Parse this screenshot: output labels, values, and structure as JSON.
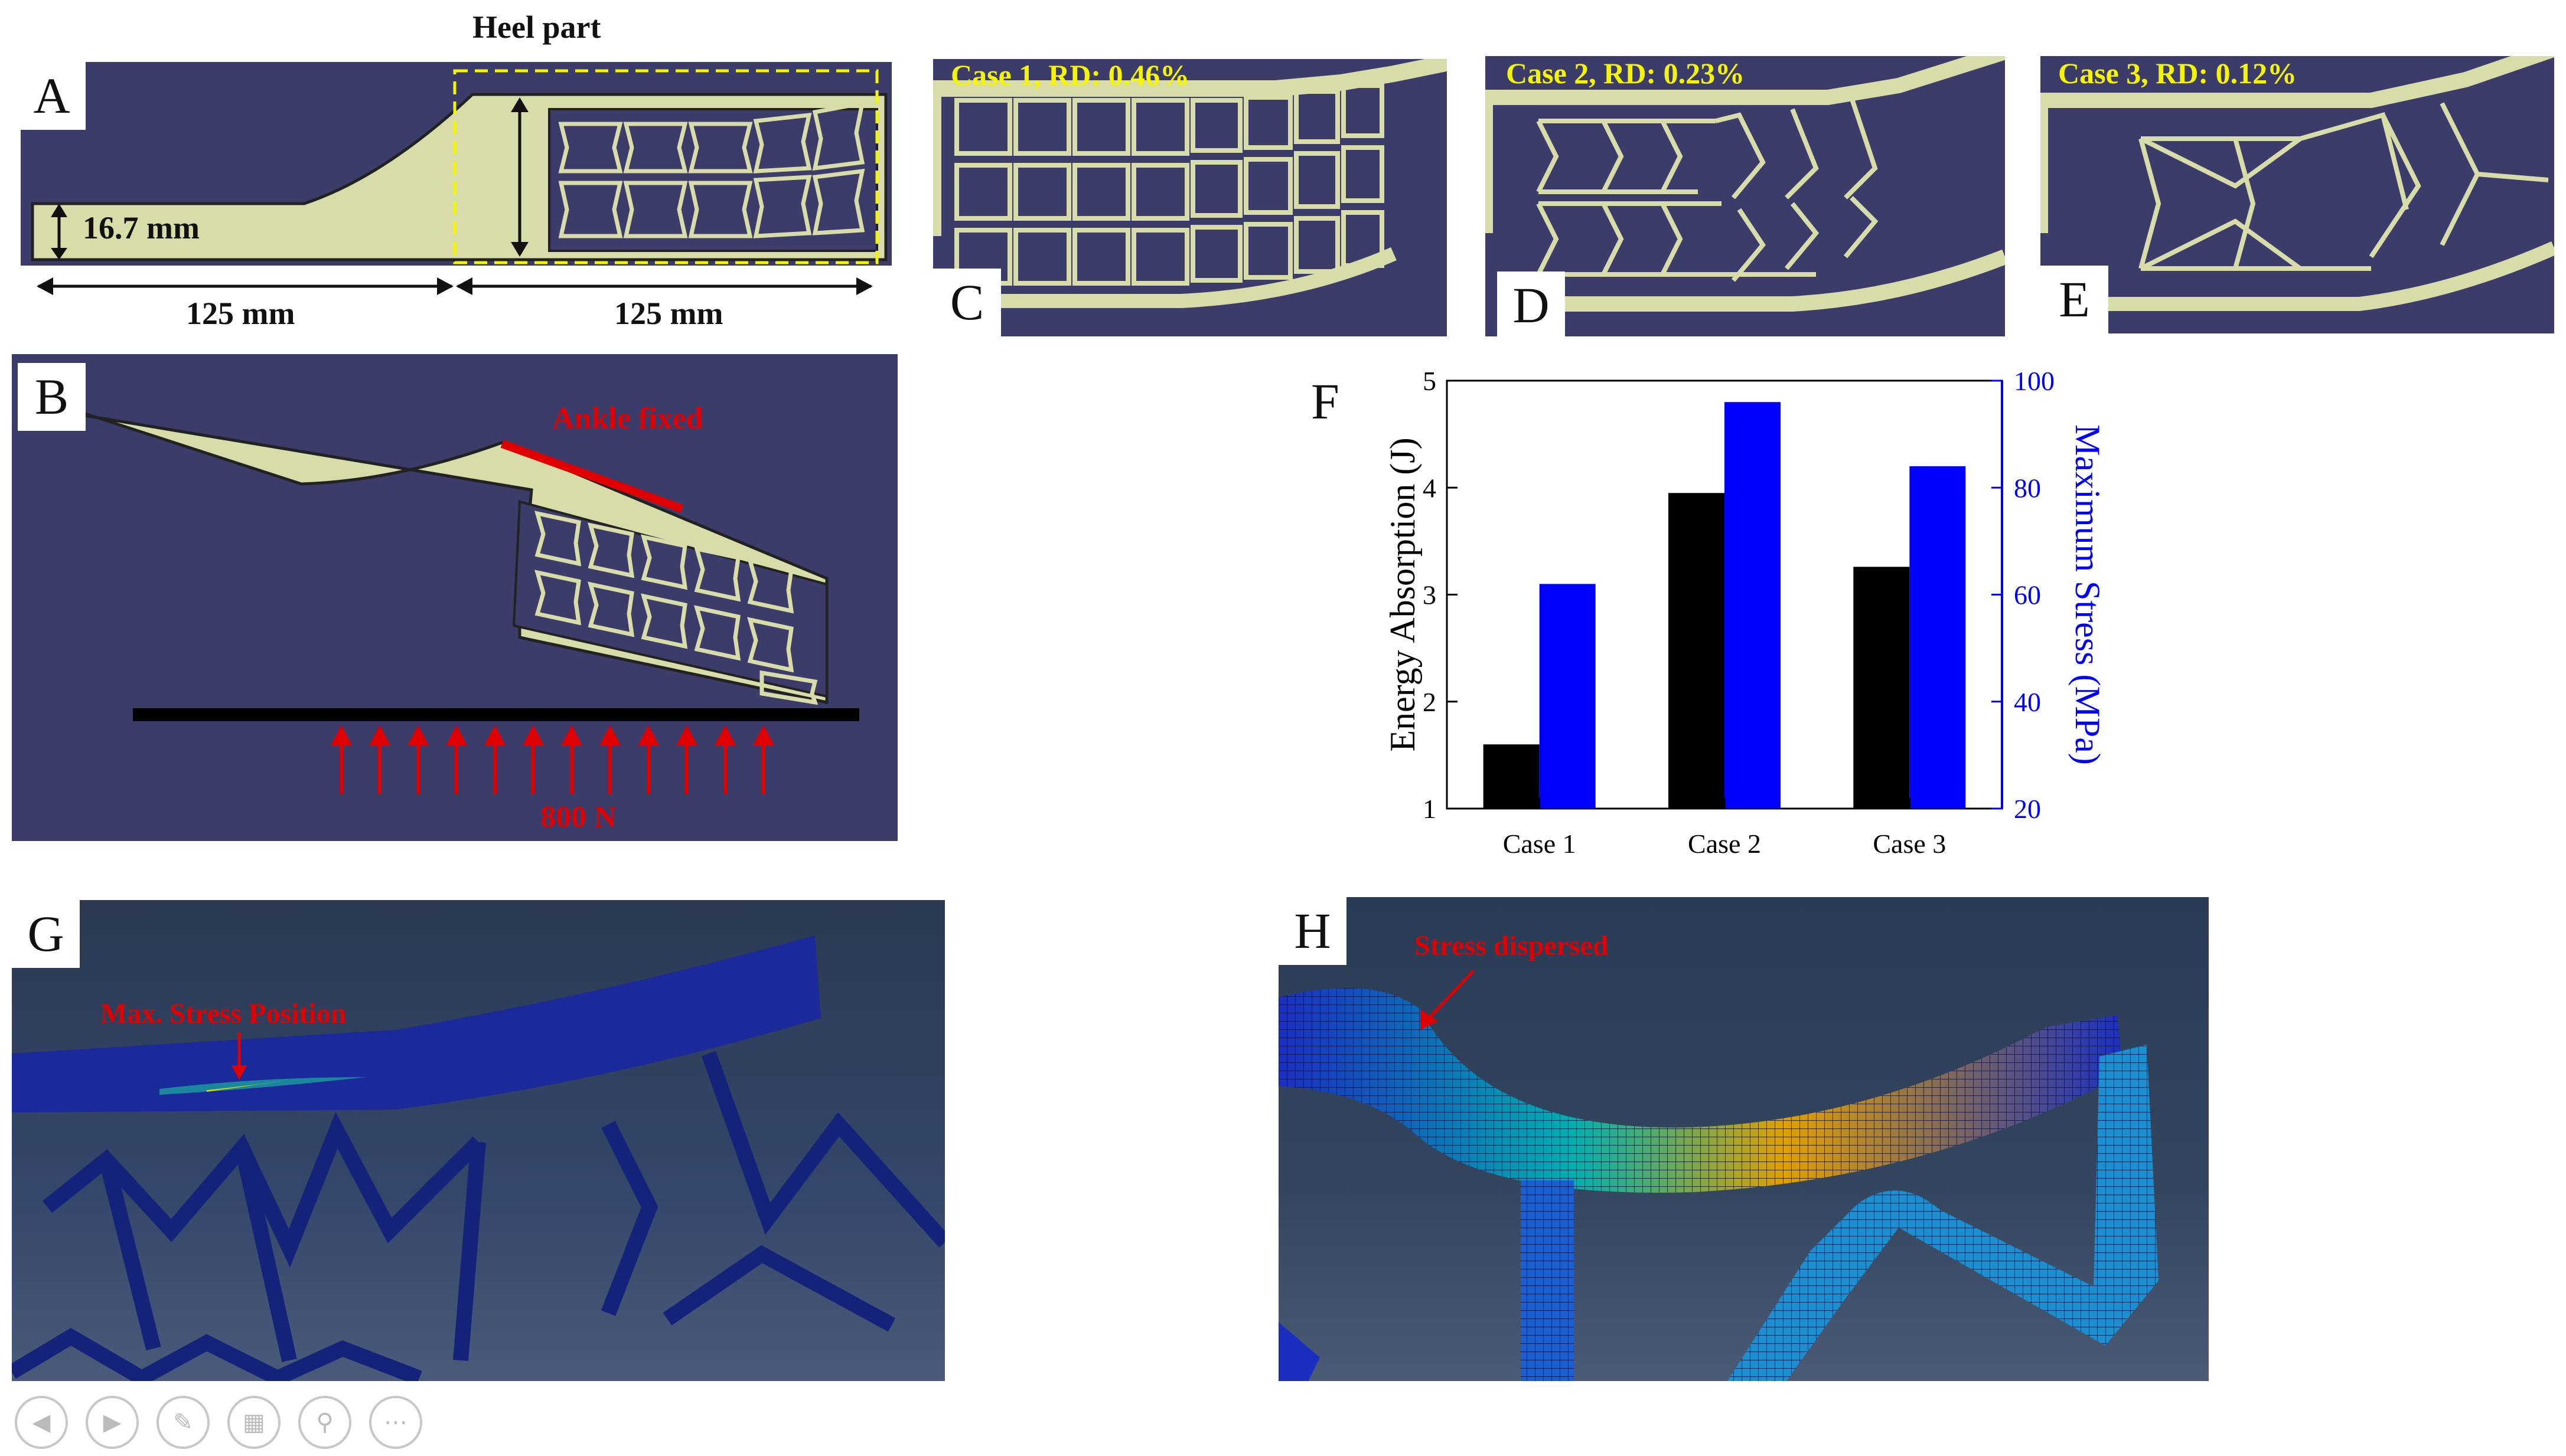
{
  "panels": {
    "A": {
      "letter": "A",
      "heel_part_label": "Heel part",
      "thickness_label": "16.7 mm",
      "length_left": "125 mm",
      "length_right": "125 mm"
    },
    "B": {
      "letter": "B",
      "fixed_label": "Ankle fixed",
      "load_label": "800 N"
    },
    "C": {
      "letter": "C",
      "case_label": "Case 1, RD: 0.46%"
    },
    "D": {
      "letter": "D",
      "case_label": "Case 2, RD: 0.23%"
    },
    "E": {
      "letter": "E",
      "case_label": "Case 3, RD: 0.12%"
    },
    "F": {
      "letter": "F"
    },
    "G": {
      "letter": "G",
      "annotation": "Max. Stress Position"
    },
    "H": {
      "letter": "H",
      "annotation": "Stress dispersed"
    }
  },
  "chart_data": {
    "type": "bar",
    "categories": [
      "Case 1",
      "Case 2",
      "Case 3"
    ],
    "series": [
      {
        "name": "Energy Absorption (J)",
        "axis": "left",
        "color": "#000000",
        "values": [
          1.6,
          3.95,
          3.26
        ]
      },
      {
        "name": "Maximum Stress (MPa)",
        "axis": "right",
        "color": "#0000ff",
        "values": [
          62,
          96,
          84
        ]
      }
    ],
    "ylabel_left": "Energy Absorption (J)",
    "ylabel_right": "Maximum Stress (MPa)",
    "ylim_left": [
      1,
      5
    ],
    "ylim_right": [
      20,
      100
    ],
    "yticks_left": [
      "1",
      "2",
      "3",
      "4",
      "5"
    ],
    "yticks_right": [
      "20",
      "40",
      "60",
      "80",
      "100"
    ],
    "grid": false
  },
  "colors": {
    "background_navy": "#3b3c6a",
    "material": "#d8dca8",
    "case_label_yellow": "#f5f500",
    "annotation_red": "#e00000",
    "fea_background": "#2a3a55"
  },
  "viewer_controls": {
    "icons": [
      "prev-icon",
      "next-icon",
      "pen-icon",
      "gallery-icon",
      "zoom-icon",
      "more-icon"
    ]
  }
}
